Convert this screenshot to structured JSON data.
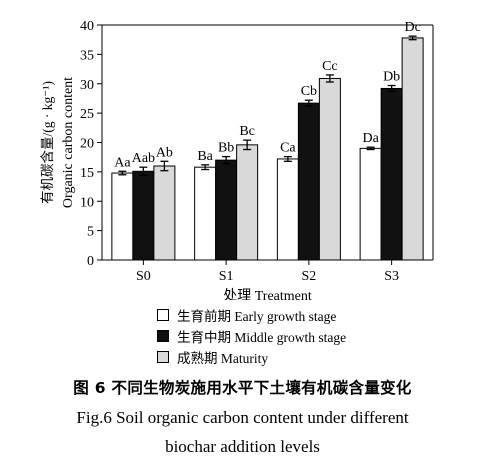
{
  "chart_data": {
    "type": "bar",
    "categories": [
      "S0",
      "S1",
      "S2",
      "S3"
    ],
    "xlabel": "处理 Treatment",
    "ylabel_cn": "有机碳含量/(g · kg⁻¹)",
    "ylabel_en": "Organic carbon content",
    "ylim": [
      0,
      40
    ],
    "yticks": [
      0,
      5,
      10,
      15,
      20,
      25,
      30,
      35,
      40
    ],
    "grid": false,
    "legend_placement": "bottom",
    "series": [
      {
        "name": "生育前期 Early growth stage",
        "color": "#ffffff",
        "values": [
          14.8,
          15.8,
          17.2,
          19.0
        ],
        "errors": [
          0.3,
          0.4,
          0.4,
          0.2
        ],
        "labels": [
          "Aa",
          "Ba",
          "Ca",
          "Da"
        ]
      },
      {
        "name": "生育中期 Middle growth stage",
        "color": "#111111",
        "values": [
          15.1,
          17.0,
          26.7,
          29.2
        ],
        "errors": [
          0.7,
          0.6,
          0.5,
          0.5
        ],
        "labels": [
          "Aab",
          "Bb",
          "Cb",
          "Db"
        ]
      },
      {
        "name": "成熟期 Maturity",
        "color": "#d9d9d9",
        "values": [
          16.0,
          19.6,
          30.9,
          37.8
        ],
        "errors": [
          0.8,
          0.8,
          0.6,
          0.3
        ],
        "labels": [
          "Ab",
          "Bc",
          "Cc",
          "Dc"
        ]
      }
    ]
  },
  "caption": {
    "cn": "图 6   不同生物炭施用水平下土壤有机碳含量变化",
    "en_line1": "Fig.6   Soil organic carbon content under different",
    "en_line2": "biochar addition levels"
  }
}
